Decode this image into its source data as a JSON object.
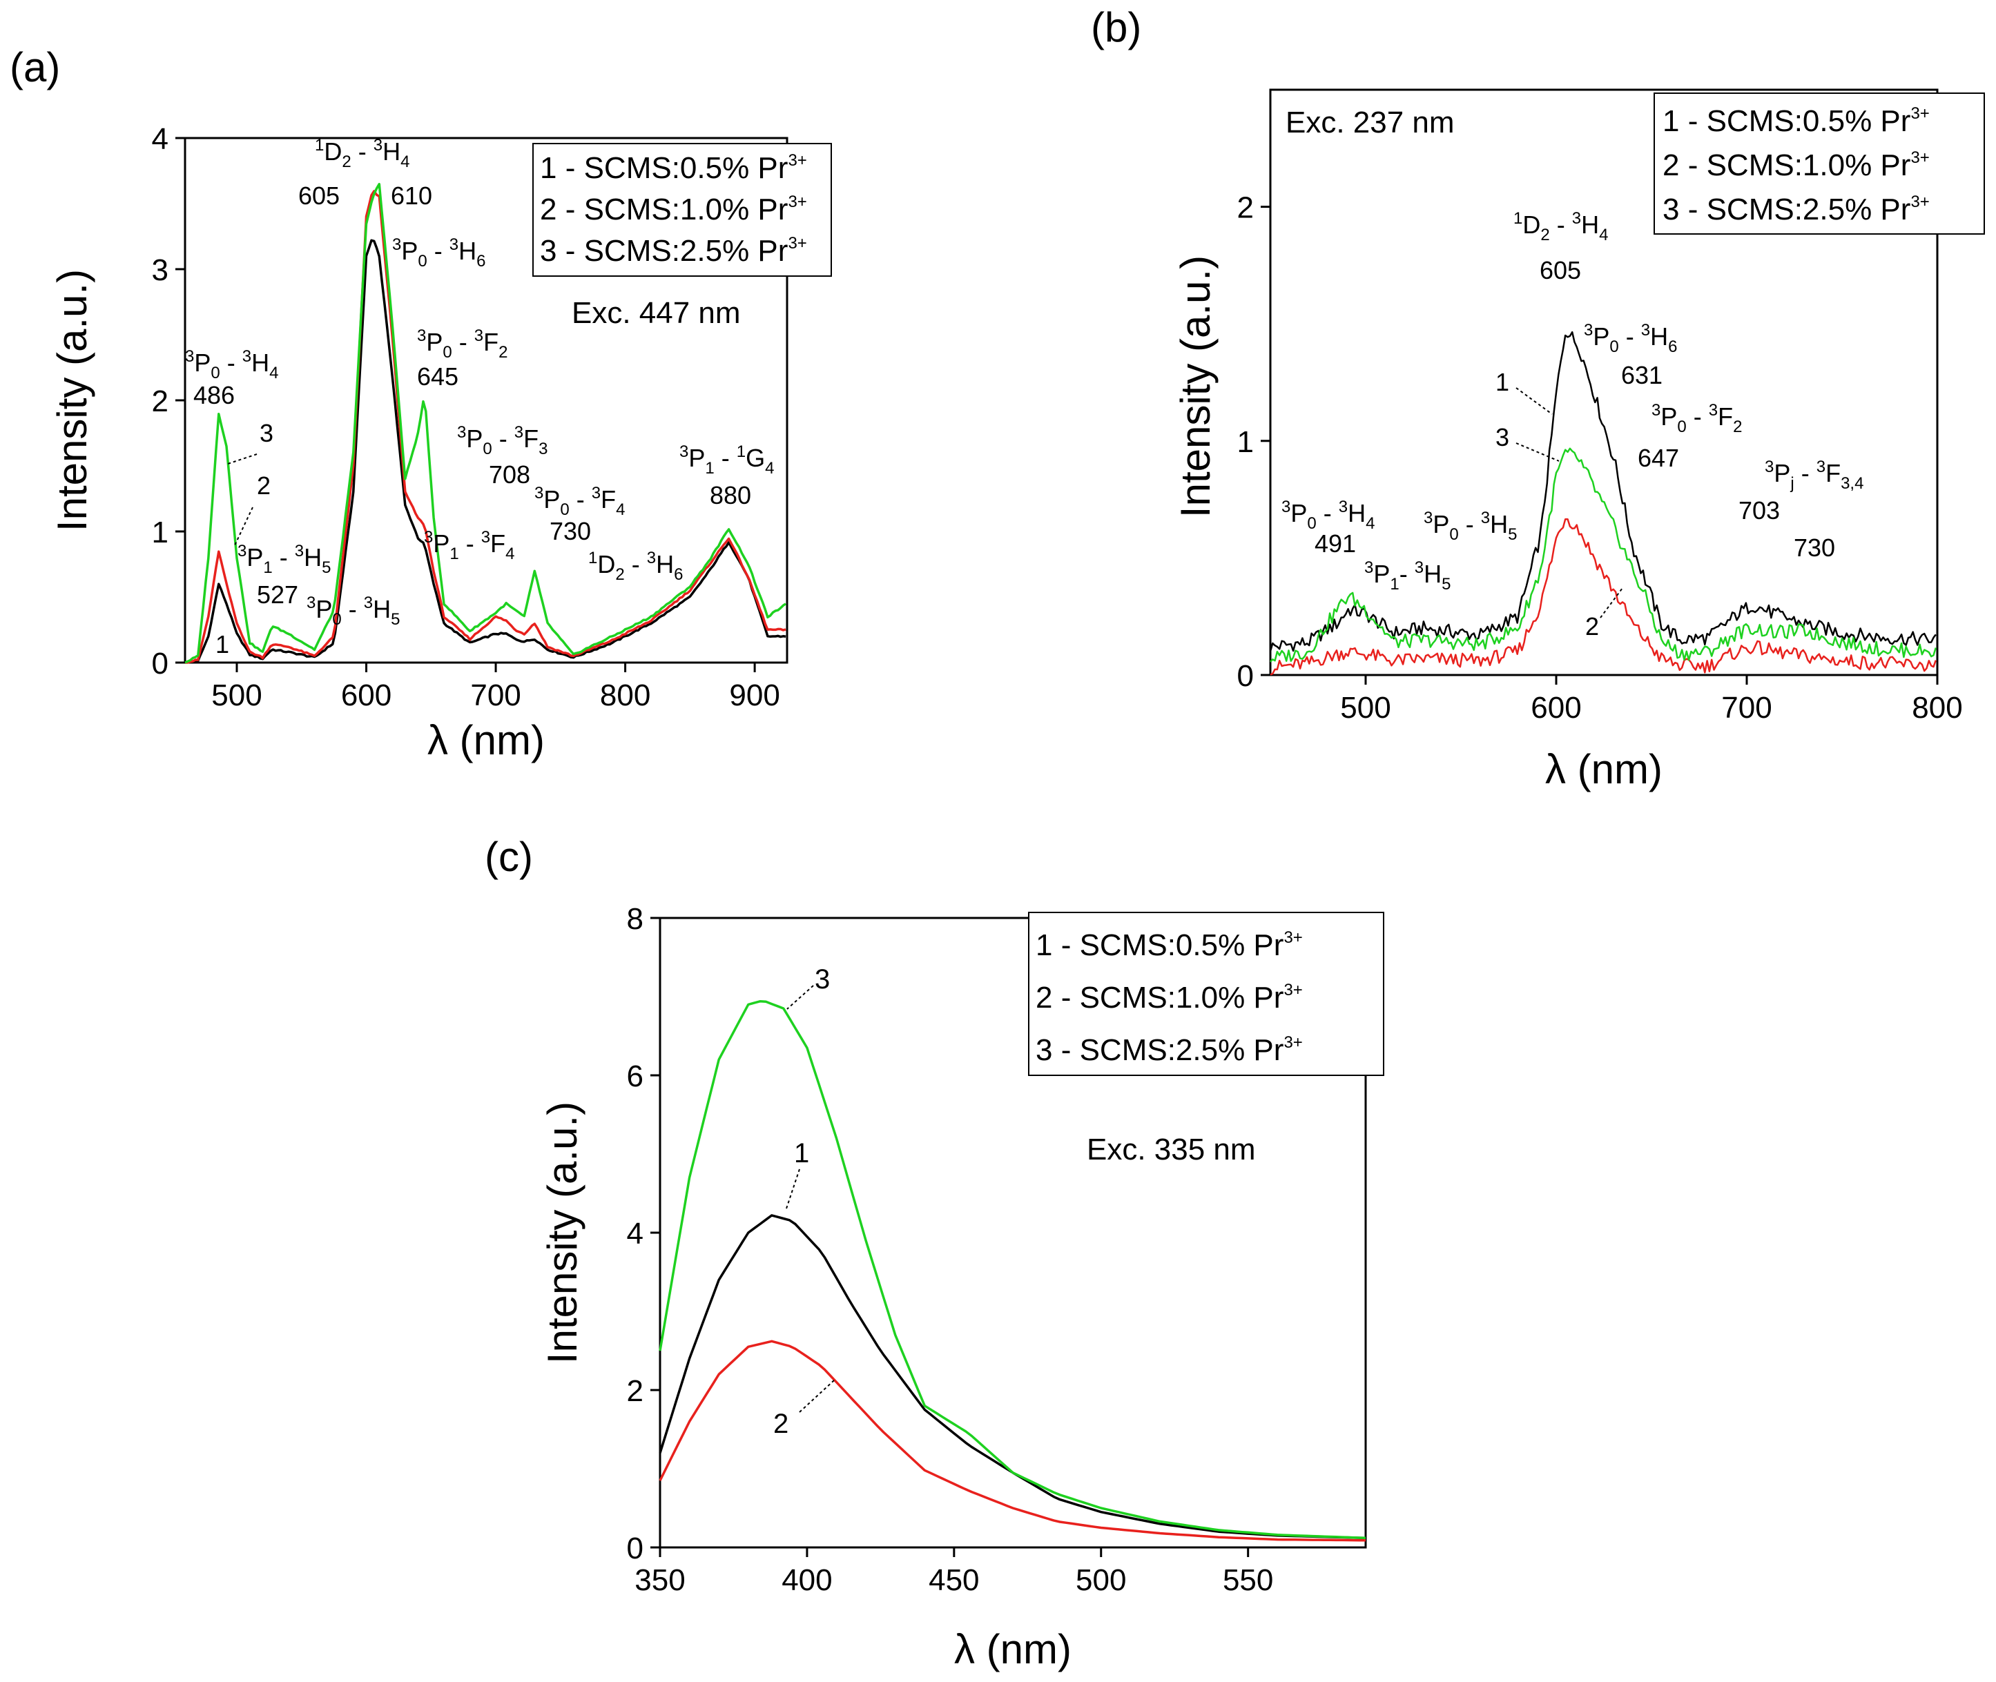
{
  "chart_data": [
    {
      "panel_label": "(a)",
      "type": "line",
      "xlabel": "λ (nm)",
      "ylabel": "Intensity (a.u.)",
      "xlim": [
        460,
        925
      ],
      "ylim": [
        0,
        4
      ],
      "xticks": [
        500,
        600,
        700,
        800,
        900
      ],
      "yticks": [
        0,
        1,
        2,
        3,
        4
      ],
      "excitation": "Exc. 447 nm",
      "legend": [
        "1 - SCMS:0.5% Pr",
        "2 - SCMS:1.0% Pr",
        "3 - SCMS:2.5% Pr"
      ],
      "legend_sup": "3+",
      "series": [
        {
          "name": "1",
          "color": "#000000",
          "x": [
            460,
            470,
            478,
            486,
            492,
            500,
            510,
            520,
            527,
            540,
            560,
            575,
            590,
            600,
            605,
            610,
            620,
            630,
            640,
            645,
            652,
            660,
            680,
            700,
            708,
            715,
            722,
            730,
            740,
            760,
            790,
            820,
            850,
            865,
            880,
            895,
            910,
            925
          ],
          "y": [
            0,
            0.01,
            0.2,
            0.6,
            0.45,
            0.22,
            0.06,
            0.03,
            0.1,
            0.08,
            0.04,
            0.15,
            1.3,
            3.1,
            3.25,
            3.1,
            2.2,
            1.2,
            0.95,
            0.9,
            0.6,
            0.3,
            0.15,
            0.22,
            0.22,
            0.18,
            0.16,
            0.18,
            0.1,
            0.04,
            0.15,
            0.3,
            0.5,
            0.7,
            0.92,
            0.65,
            0.2,
            0.2
          ]
        },
        {
          "name": "2",
          "color": "#e8211d",
          "x": [
            460,
            470,
            478,
            486,
            492,
            500,
            510,
            520,
            527,
            540,
            560,
            575,
            590,
            600,
            605,
            610,
            620,
            630,
            640,
            645,
            652,
            660,
            680,
            700,
            708,
            715,
            722,
            730,
            740,
            760,
            790,
            820,
            850,
            865,
            880,
            895,
            910,
            925
          ],
          "y": [
            0,
            0.02,
            0.35,
            0.85,
            0.6,
            0.3,
            0.08,
            0.04,
            0.14,
            0.12,
            0.05,
            0.2,
            1.5,
            3.4,
            3.6,
            3.55,
            2.5,
            1.3,
            1.1,
            1.05,
            0.7,
            0.35,
            0.18,
            0.35,
            0.32,
            0.25,
            0.22,
            0.3,
            0.12,
            0.05,
            0.17,
            0.32,
            0.55,
            0.75,
            0.95,
            0.65,
            0.25,
            0.25
          ]
        },
        {
          "name": "3",
          "color": "#1ed120",
          "x": [
            460,
            470,
            478,
            486,
            492,
            500,
            510,
            520,
            527,
            540,
            560,
            575,
            590,
            600,
            605,
            610,
            620,
            630,
            640,
            645,
            652,
            660,
            680,
            700,
            708,
            715,
            722,
            730,
            740,
            760,
            790,
            820,
            850,
            865,
            880,
            895,
            910,
            925
          ],
          "y": [
            0,
            0.05,
            0.8,
            1.9,
            1.65,
            0.8,
            0.15,
            0.08,
            0.28,
            0.22,
            0.1,
            0.4,
            1.6,
            3.35,
            3.55,
            3.65,
            2.6,
            1.4,
            1.75,
            2.05,
            1.1,
            0.45,
            0.24,
            0.38,
            0.45,
            0.4,
            0.35,
            0.7,
            0.3,
            0.06,
            0.2,
            0.35,
            0.58,
            0.78,
            1.02,
            0.75,
            0.35,
            0.45
          ]
        }
      ],
      "annotations": {
        "t1": {
          "pre": "3",
          "a": "P",
          "asub": "0",
          "mid": " - ",
          "bpre": "3",
          "b": "H",
          "bsub": "4"
        },
        "t1v": "486",
        "t2": {
          "pre": "3",
          "a": "P",
          "asub": "1",
          "mid": " - ",
          "bpre": "3",
          "b": "H",
          "bsub": "5"
        },
        "t2v": "527",
        "t3": {
          "pre": "3",
          "a": "P",
          "asub": "0",
          "mid": " - ",
          "bpre": "3",
          "b": "H",
          "bsub": "5"
        },
        "t4": {
          "pre": "1",
          "a": "D",
          "asub": "2",
          "mid": " - ",
          "bpre": "3",
          "b": "H",
          "bsub": "4"
        },
        "t4v1": "605",
        "t4v2": "610",
        "t5": {
          "pre": "3",
          "a": "P",
          "asub": "0",
          "mid": " - ",
          "bpre": "3",
          "b": "H",
          "bsub": "6"
        },
        "t6": {
          "pre": "3",
          "a": "P",
          "asub": "0",
          "mid": " - ",
          "bpre": "3",
          "b": "F",
          "bsub": "2"
        },
        "t6v": "645",
        "t7": {
          "pre": "3",
          "a": "P",
          "asub": "0",
          "mid": " - ",
          "bpre": "3",
          "b": "F",
          "bsub": "3"
        },
        "t7v": "708",
        "t8": {
          "pre": "3",
          "a": "P",
          "asub": "0",
          "mid": " - ",
          "bpre": "3",
          "b": "F",
          "bsub": "4"
        },
        "t8v": "730",
        "t9": {
          "pre": "3",
          "a": "P",
          "asub": "1",
          "mid": " - ",
          "bpre": "3",
          "b": "F",
          "bsub": "4"
        },
        "t10": {
          "pre": "1",
          "a": "D",
          "asub": "2",
          "mid": " - ",
          "bpre": "3",
          "b": "H",
          "bsub": "6"
        },
        "t11": {
          "pre": "3",
          "a": "P",
          "asub": "1",
          "mid": " - ",
          "bpre": "1",
          "b": "G",
          "bsub": "4"
        },
        "t11v": "880",
        "c1": "1",
        "c2": "2",
        "c3": "3"
      }
    },
    {
      "panel_label": "(b)",
      "type": "line",
      "xlabel": "λ (nm)",
      "ylabel": "Intensity (a.u.)",
      "xlim": [
        450,
        800
      ],
      "ylim": [
        0,
        2.5
      ],
      "xticks": [
        500,
        600,
        700,
        800
      ],
      "yticks": [
        0,
        1,
        2
      ],
      "excitation": "Exc. 237 nm",
      "legend": [
        "1 - SCMS:0.5% Pr",
        "2 - SCMS:1.0% Pr",
        "3 - SCMS:2.5% Pr"
      ],
      "legend_sup": "3+",
      "series": [
        {
          "name": "1",
          "color": "#000000",
          "x": [
            450,
            470,
            485,
            491,
            500,
            515,
            530,
            560,
            580,
            592,
            600,
            605,
            612,
            620,
            631,
            640,
            647,
            655,
            665,
            680,
            695,
            703,
            715,
            730,
            750,
            770,
            800
          ],
          "y": [
            0.12,
            0.14,
            0.22,
            0.28,
            0.26,
            0.18,
            0.2,
            0.17,
            0.25,
            0.6,
            1.2,
            1.48,
            1.4,
            1.2,
            0.9,
            0.55,
            0.4,
            0.22,
            0.15,
            0.16,
            0.26,
            0.3,
            0.26,
            0.22,
            0.18,
            0.16,
            0.15
          ]
        },
        {
          "name": "2",
          "color": "#e8211d",
          "x": [
            450,
            470,
            485,
            491,
            500,
            515,
            530,
            560,
            580,
            592,
            600,
            605,
            612,
            620,
            631,
            640,
            647,
            655,
            665,
            680,
            695,
            703,
            715,
            730,
            750,
            770,
            800
          ],
          "y": [
            0.03,
            0.05,
            0.09,
            0.1,
            0.09,
            0.06,
            0.07,
            0.06,
            0.1,
            0.3,
            0.58,
            0.68,
            0.62,
            0.5,
            0.35,
            0.22,
            0.15,
            0.07,
            0.04,
            0.04,
            0.1,
            0.12,
            0.1,
            0.08,
            0.06,
            0.05,
            0.04
          ]
        },
        {
          "name": "3",
          "color": "#1ed120",
          "x": [
            450,
            470,
            485,
            491,
            500,
            515,
            530,
            560,
            580,
            592,
            600,
            605,
            612,
            620,
            631,
            640,
            647,
            655,
            665,
            680,
            695,
            703,
            715,
            730,
            750,
            770,
            800
          ],
          "y": [
            0.07,
            0.1,
            0.28,
            0.34,
            0.28,
            0.14,
            0.15,
            0.13,
            0.2,
            0.45,
            0.85,
            0.95,
            0.92,
            0.8,
            0.62,
            0.45,
            0.33,
            0.15,
            0.09,
            0.1,
            0.18,
            0.2,
            0.18,
            0.19,
            0.14,
            0.11,
            0.1
          ]
        }
      ],
      "annotations": {
        "t1": {
          "pre": "3",
          "a": "P",
          "asub": "0",
          "mid": " - ",
          "bpre": "3",
          "b": "H",
          "bsub": "4"
        },
        "t1v": "491",
        "t2": {
          "pre": "3",
          "a": "P",
          "asub": "1",
          "mid": "- ",
          "bpre": "3",
          "b": "H",
          "bsub": "5"
        },
        "t3": {
          "pre": "3",
          "a": "P",
          "asub": "0",
          "mid": " - ",
          "bpre": "3",
          "b": "H",
          "bsub": "5"
        },
        "t4": {
          "pre": "1",
          "a": "D",
          "asub": "2",
          "mid": " - ",
          "bpre": "3",
          "b": "H",
          "bsub": "4"
        },
        "t4v": "605",
        "t5": {
          "pre": "3",
          "a": "P",
          "asub": "0",
          "mid": " - ",
          "bpre": "3",
          "b": "H",
          "bsub": "6"
        },
        "t5v": "631",
        "t6": {
          "pre": "3",
          "a": "P",
          "asub": "0",
          "mid": " - ",
          "bpre": "3",
          "b": "F",
          "bsub": "2"
        },
        "t6v": "647",
        "t7": {
          "pre": "3",
          "a": "P",
          "asub": "j",
          "mid": " - ",
          "bpre": "3",
          "b": "F",
          "bsub": "3,4"
        },
        "t7v1": "703",
        "t7v2": "730",
        "c1": "1",
        "c2": "2",
        "c3": "3"
      }
    },
    {
      "panel_label": "(c)",
      "type": "line",
      "xlabel": "λ (nm)",
      "ylabel": "Intensity (a.u.)",
      "xlim": [
        350,
        590
      ],
      "ylim": [
        0,
        8
      ],
      "xticks": [
        350,
        400,
        450,
        500,
        550
      ],
      "yticks": [
        0,
        2,
        4,
        6,
        8
      ],
      "excitation": "Exc. 335 nm",
      "legend": [
        "1 - SCMS:0.5% Pr",
        "2 - SCMS:1.0% Pr",
        "3 - SCMS:2.5% Pr"
      ],
      "legend_sup": "3+",
      "series": [
        {
          "name": "1",
          "color": "#000000",
          "x": [
            350,
            360,
            370,
            380,
            388,
            395,
            405,
            415,
            425,
            440,
            455,
            470,
            485,
            500,
            520,
            540,
            560,
            590
          ],
          "y": [
            1.2,
            2.4,
            3.4,
            4.0,
            4.22,
            4.15,
            3.75,
            3.1,
            2.5,
            1.75,
            1.3,
            0.95,
            0.62,
            0.45,
            0.3,
            0.2,
            0.15,
            0.12
          ]
        },
        {
          "name": "2",
          "color": "#e8211d",
          "x": [
            350,
            360,
            370,
            380,
            388,
            395,
            405,
            415,
            425,
            440,
            455,
            470,
            485,
            500,
            520,
            540,
            560,
            590
          ],
          "y": [
            0.85,
            1.6,
            2.2,
            2.55,
            2.62,
            2.55,
            2.3,
            1.9,
            1.5,
            0.98,
            0.72,
            0.5,
            0.33,
            0.25,
            0.18,
            0.13,
            0.1,
            0.09
          ]
        },
        {
          "name": "3",
          "color": "#1ed120",
          "x": [
            350,
            360,
            370,
            380,
            385,
            392,
            400,
            410,
            420,
            430,
            440,
            455,
            470,
            485,
            500,
            520,
            540,
            560,
            590
          ],
          "y": [
            2.5,
            4.7,
            6.2,
            6.9,
            6.95,
            6.85,
            6.35,
            5.2,
            3.9,
            2.7,
            1.8,
            1.45,
            0.95,
            0.68,
            0.5,
            0.33,
            0.22,
            0.16,
            0.12
          ]
        }
      ],
      "annotations": {
        "c1": "1",
        "c2": "2",
        "c3": "3"
      }
    }
  ]
}
